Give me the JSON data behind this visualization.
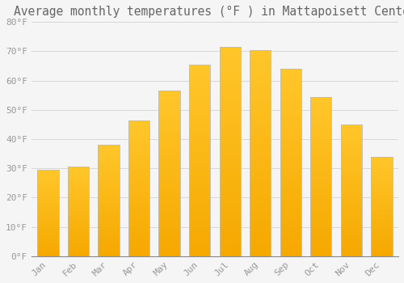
{
  "title": "Average monthly temperatures (°F ) in Mattapoisett Center",
  "months": [
    "Jan",
    "Feb",
    "Mar",
    "Apr",
    "May",
    "Jun",
    "Jul",
    "Aug",
    "Sep",
    "Oct",
    "Nov",
    "Dec"
  ],
  "values": [
    29.5,
    30.5,
    38.0,
    46.5,
    56.5,
    65.5,
    71.5,
    70.5,
    64.0,
    54.5,
    45.0,
    34.0
  ],
  "bar_color_top": "#FFC62A",
  "bar_color_bottom": "#F5A800",
  "bar_edge_color": "#BBBBBB",
  "background_color": "#F5F5F5",
  "grid_color": "#D8D8D8",
  "text_color": "#999999",
  "title_color": "#666666",
  "ylim": [
    0,
    80
  ],
  "yticks": [
    0,
    10,
    20,
    30,
    40,
    50,
    60,
    70,
    80
  ],
  "ytick_labels": [
    "0°F",
    "10°F",
    "20°F",
    "30°F",
    "40°F",
    "50°F",
    "60°F",
    "70°F",
    "80°F"
  ],
  "title_fontsize": 10.5,
  "tick_fontsize": 8,
  "font_family": "monospace",
  "bar_width": 0.7
}
